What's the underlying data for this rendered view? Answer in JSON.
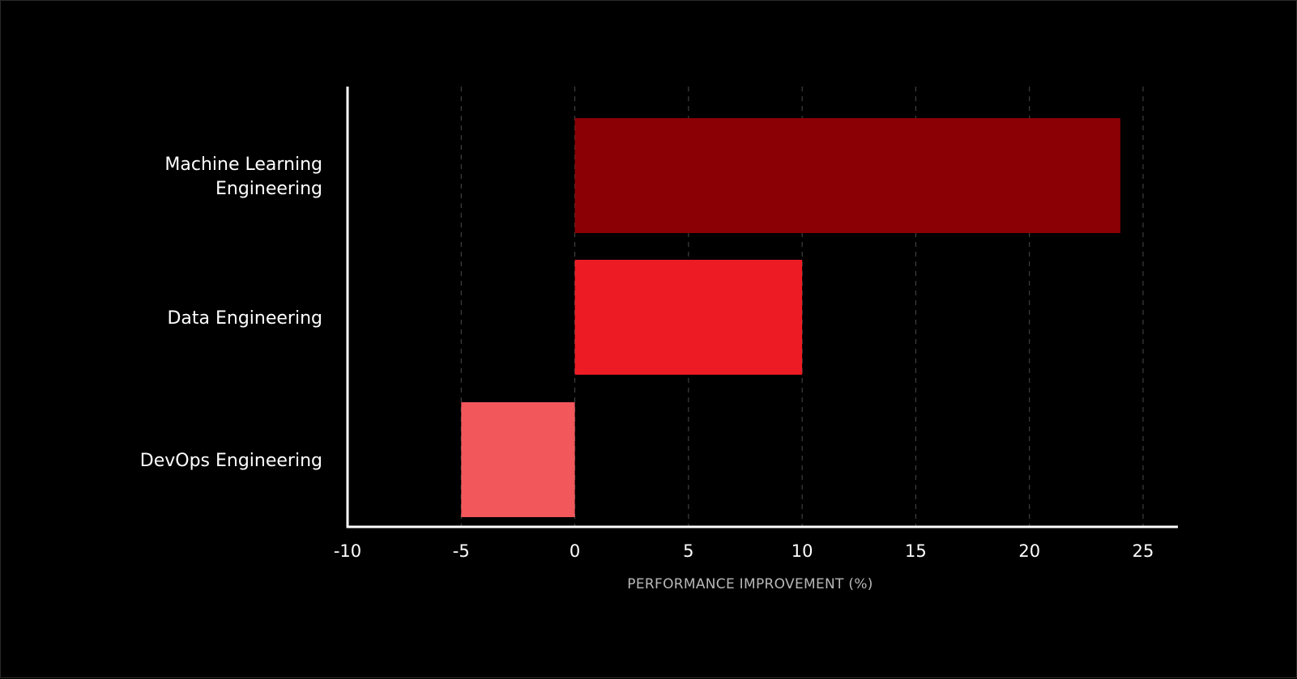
{
  "chart_data": {
    "type": "bar",
    "orientation": "horizontal",
    "categories": [
      [
        "Machine Learning",
        "Engineering"
      ],
      [
        "Data Engineering"
      ],
      [
        "DevOps Engineering"
      ]
    ],
    "values": [
      24,
      10,
      -5
    ],
    "bar_colors": [
      "#8b0005",
      "#ed1c24",
      "#f2575c"
    ],
    "xlabel": "PERFORMANCE IMPROVEMENT (%)",
    "xlim": [
      -10,
      25
    ],
    "xticks": [
      -10,
      -5,
      0,
      5,
      10,
      15,
      20,
      25
    ],
    "grid": "vertical dashed",
    "colors": {
      "background": "#000000",
      "axis": "#ffffff",
      "grid": "#4a4a4a",
      "text": "#ffffff",
      "axis_title": "#b8b8b8"
    }
  }
}
